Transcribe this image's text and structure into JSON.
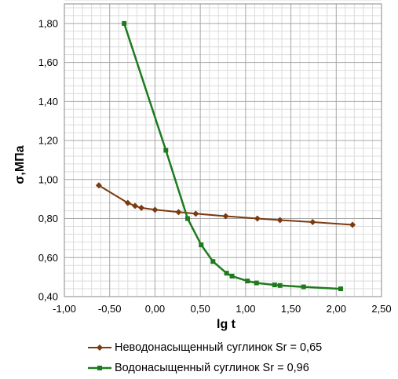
{
  "chart_data": {
    "type": "line",
    "xlabel": "lg t",
    "ylabel": "σ,МПа",
    "xlim": [
      -1.0,
      2.5
    ],
    "ylim": [
      0.4,
      1.9
    ],
    "x_ticks": [
      "-1,00",
      "-0,50",
      "0,00",
      "0,50",
      "1,00",
      "1,50",
      "2,00",
      "2,50"
    ],
    "y_ticks": [
      "0,40",
      "0,60",
      "0,80",
      "1,00",
      "1,20",
      "1,40",
      "1,60",
      "1,80"
    ],
    "grid": true,
    "legend_position": "bottom",
    "series": [
      {
        "name": "Неводонасыщенный суглинок Sr = 0,65",
        "color": "#7b3a0f",
        "marker": "diamond",
        "points": [
          [
            -0.62,
            0.97
          ],
          [
            -0.3,
            0.88
          ],
          [
            -0.22,
            0.865
          ],
          [
            -0.15,
            0.855
          ],
          [
            0.0,
            0.845
          ],
          [
            0.26,
            0.833
          ],
          [
            0.45,
            0.825
          ],
          [
            0.78,
            0.812
          ],
          [
            1.13,
            0.8
          ],
          [
            1.38,
            0.792
          ],
          [
            1.74,
            0.782
          ],
          [
            2.18,
            0.768
          ]
        ]
      },
      {
        "name": "Водонасыщенный суглинок Sr = 0,96",
        "color": "#1e7a1e",
        "marker": "square",
        "points": [
          [
            -0.34,
            1.8
          ],
          [
            0.12,
            1.15
          ],
          [
            0.36,
            0.8
          ],
          [
            0.51,
            0.665
          ],
          [
            0.64,
            0.58
          ],
          [
            0.79,
            0.52
          ],
          [
            0.85,
            0.505
          ],
          [
            1.02,
            0.48
          ],
          [
            1.12,
            0.47
          ],
          [
            1.32,
            0.46
          ],
          [
            1.38,
            0.457
          ],
          [
            1.64,
            0.45
          ],
          [
            2.05,
            0.44
          ]
        ]
      }
    ]
  }
}
